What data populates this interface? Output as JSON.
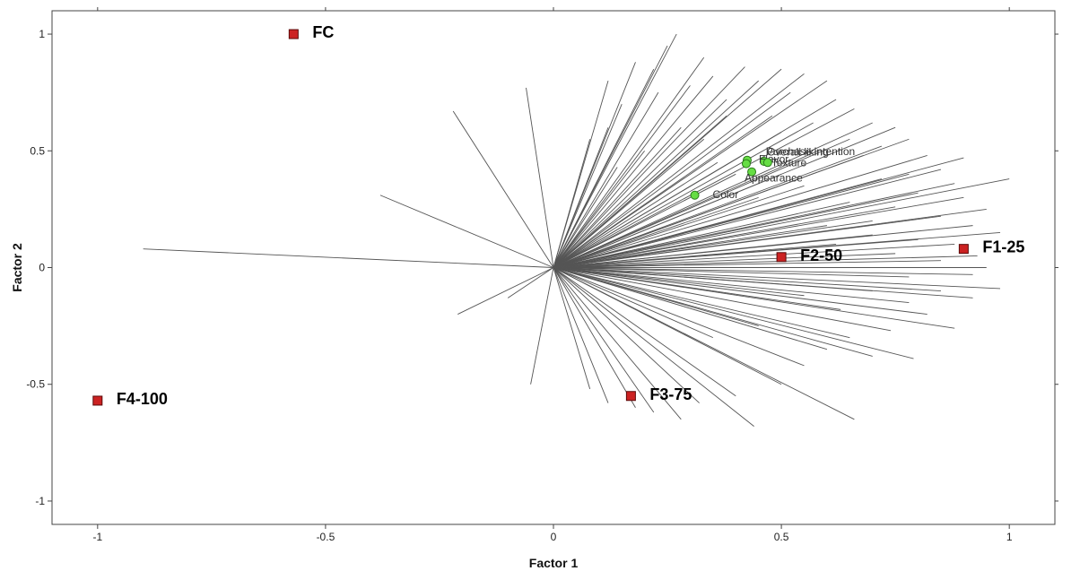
{
  "chart_data": {
    "type": "scatter",
    "title": "",
    "xlabel": "Factor 1",
    "ylabel": "Factor 2",
    "xlim": [
      -1.1,
      1.1
    ],
    "ylim": [
      -1.1,
      1.1
    ],
    "xticks": [
      -1,
      -0.5,
      0,
      0.5,
      1
    ],
    "yticks": [
      -1,
      -0.5,
      0,
      0.5,
      1
    ],
    "xtick_labels": [
      "-1",
      "-0.5",
      "0",
      "0.5",
      "1"
    ],
    "ytick_labels": [
      "-1",
      "-0.5",
      "0",
      "0.5",
      "1"
    ],
    "grid": false,
    "colors": {
      "products": "#cc2222",
      "attributes": "#66dd44",
      "vectors": "#555555"
    },
    "products": [
      {
        "label": "FC",
        "x": -0.57,
        "y": 1.0
      },
      {
        "label": "F1-25",
        "x": 0.9,
        "y": 0.08
      },
      {
        "label": "F2-50",
        "x": 0.5,
        "y": 0.045
      },
      {
        "label": "F3-75",
        "x": 0.17,
        "y": -0.55
      },
      {
        "label": "F4-100",
        "x": -1.0,
        "y": -0.57
      }
    ],
    "attributes": [
      {
        "label": "Purchase intention",
        "x": 0.462,
        "y": 0.455
      },
      {
        "label": "Overall liking",
        "x": 0.425,
        "y": 0.46
      },
      {
        "label": "Flavor",
        "x": 0.423,
        "y": 0.445
      },
      {
        "label": "Texture",
        "x": 0.47,
        "y": 0.45
      },
      {
        "label": "Appearance",
        "x": 0.435,
        "y": 0.41
      },
      {
        "label": "Color",
        "x": 0.31,
        "y": 0.31
      }
    ],
    "consumer_vectors": [
      [
        0.27,
        1.0
      ],
      [
        0.25,
        0.95
      ],
      [
        0.33,
        0.9
      ],
      [
        0.18,
        0.88
      ],
      [
        0.22,
        0.85
      ],
      [
        0.35,
        0.82
      ],
      [
        0.42,
        0.86
      ],
      [
        0.5,
        0.85
      ],
      [
        0.3,
        0.78
      ],
      [
        0.45,
        0.8
      ],
      [
        0.55,
        0.83
      ],
      [
        0.6,
        0.8
      ],
      [
        0.23,
        0.75
      ],
      [
        0.38,
        0.72
      ],
      [
        0.52,
        0.75
      ],
      [
        0.62,
        0.72
      ],
      [
        0.66,
        0.68
      ],
      [
        0.48,
        0.65
      ],
      [
        0.57,
        0.62
      ],
      [
        0.7,
        0.62
      ],
      [
        0.75,
        0.6
      ],
      [
        0.78,
        0.55
      ],
      [
        0.72,
        0.52
      ],
      [
        0.65,
        0.55
      ],
      [
        0.58,
        0.5
      ],
      [
        0.68,
        0.48
      ],
      [
        0.82,
        0.48
      ],
      [
        0.9,
        0.47
      ],
      [
        0.85,
        0.42
      ],
      [
        0.78,
        0.4
      ],
      [
        0.88,
        0.36
      ],
      [
        0.72,
        0.38
      ],
      [
        0.8,
        0.32
      ],
      [
        0.9,
        0.3
      ],
      [
        0.95,
        0.25
      ],
      [
        0.75,
        0.26
      ],
      [
        0.85,
        0.22
      ],
      [
        0.65,
        0.28
      ],
      [
        0.7,
        0.2
      ],
      [
        1.0,
        0.38
      ],
      [
        0.92,
        0.18
      ],
      [
        0.98,
        0.15
      ],
      [
        0.88,
        0.1
      ],
      [
        0.8,
        0.12
      ],
      [
        0.93,
        0.05
      ],
      [
        0.85,
        0.03
      ],
      [
        0.95,
        0.0
      ],
      [
        0.75,
        0.06
      ],
      [
        0.7,
        0.14
      ],
      [
        0.6,
        0.18
      ],
      [
        0.55,
        0.35
      ],
      [
        0.5,
        0.4
      ],
      [
        0.4,
        0.4
      ],
      [
        0.33,
        0.55
      ],
      [
        0.28,
        0.6
      ],
      [
        0.15,
        0.7
      ],
      [
        0.12,
        0.6
      ],
      [
        0.08,
        0.55
      ],
      [
        0.2,
        0.5
      ],
      [
        0.36,
        0.45
      ],
      [
        0.45,
        0.3
      ],
      [
        0.62,
        0.1
      ],
      [
        0.12,
        0.8
      ],
      [
        0.38,
        0.65
      ],
      [
        0.5,
        0.58
      ],
      [
        0.14,
        0.43
      ],
      [
        -0.06,
        0.77
      ],
      [
        -0.22,
        0.67
      ],
      [
        -0.38,
        0.31
      ],
      [
        -0.9,
        0.08
      ],
      [
        -0.21,
        -0.2
      ],
      [
        -0.1,
        -0.13
      ],
      [
        -0.05,
        -0.5
      ],
      [
        0.08,
        -0.52
      ],
      [
        0.12,
        -0.58
      ],
      [
        0.18,
        -0.6
      ],
      [
        0.22,
        -0.62
      ],
      [
        0.28,
        -0.65
      ],
      [
        0.44,
        -0.68
      ],
      [
        0.32,
        -0.58
      ],
      [
        0.4,
        -0.55
      ],
      [
        0.5,
        -0.5
      ],
      [
        0.66,
        -0.65
      ],
      [
        0.55,
        -0.42
      ],
      [
        0.6,
        -0.35
      ],
      [
        0.7,
        -0.38
      ],
      [
        0.79,
        -0.39
      ],
      [
        0.65,
        -0.3
      ],
      [
        0.74,
        -0.27
      ],
      [
        0.88,
        -0.26
      ],
      [
        0.82,
        -0.2
      ],
      [
        0.92,
        -0.13
      ],
      [
        0.98,
        -0.09
      ],
      [
        0.85,
        -0.1
      ],
      [
        0.78,
        -0.15
      ],
      [
        0.7,
        -0.1
      ],
      [
        0.63,
        -0.18
      ],
      [
        0.45,
        -0.25
      ],
      [
        0.35,
        -0.3
      ],
      [
        0.55,
        -0.12
      ],
      [
        0.92,
        -0.03
      ],
      [
        0.78,
        -0.04
      ]
    ]
  }
}
